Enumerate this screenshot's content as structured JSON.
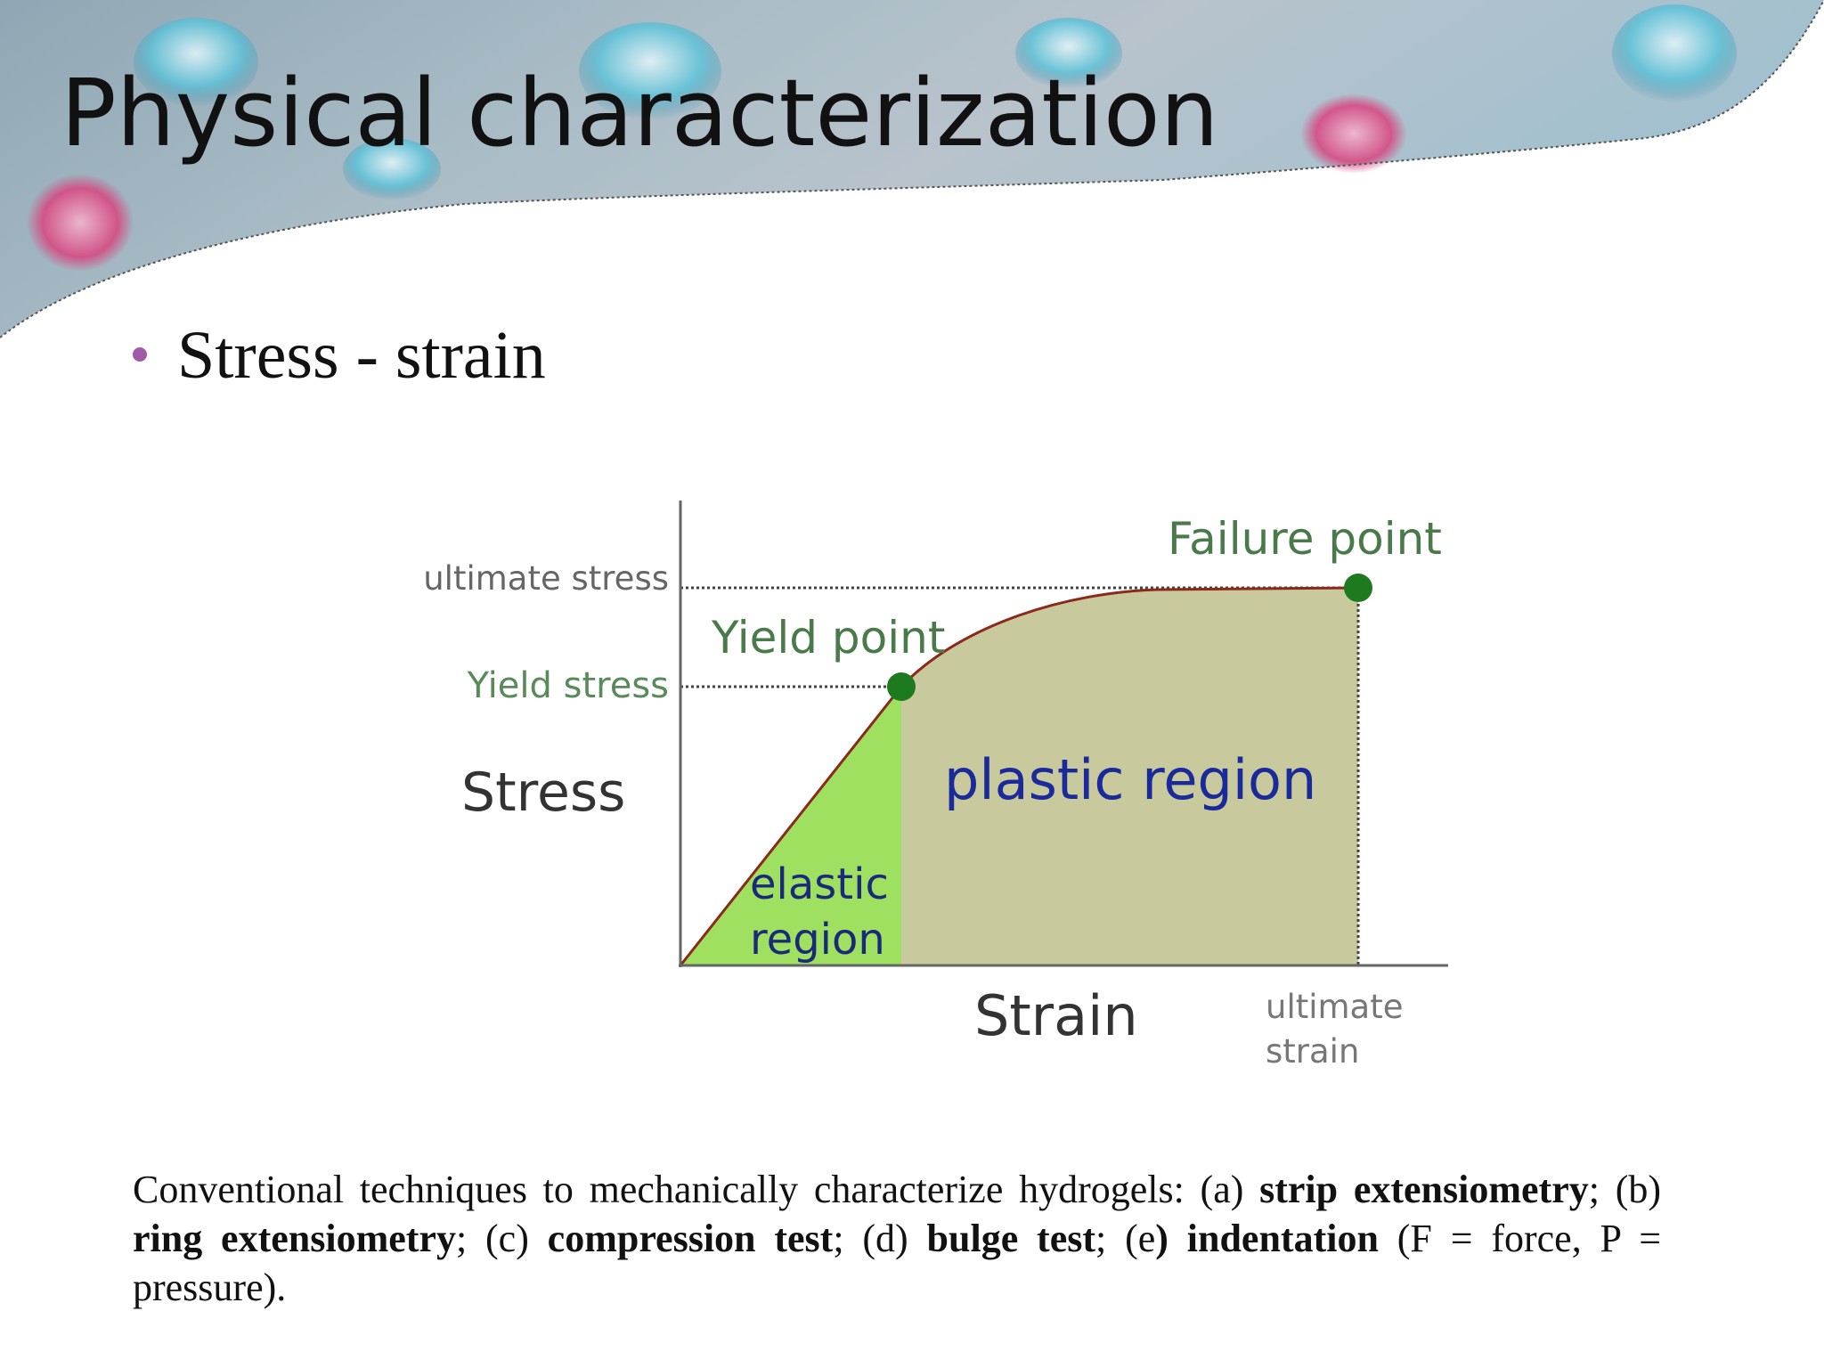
{
  "header": {
    "title": "Physical characterization"
  },
  "bullet": "Stress - strain",
  "diagram": {
    "ultimate_stress": "ultimate stress",
    "yield_stress": "Yield stress",
    "y_axis_label": "Stress",
    "yield_point": "Yield point",
    "failure_point": "Failure point",
    "plastic_region": "plastic region",
    "elastic_region": [
      "elastic",
      "region"
    ],
    "x_axis_label": "Strain",
    "ultimate_strain": [
      "ultimate",
      "strain"
    ]
  },
  "caption": {
    "runs": [
      {
        "text": "Conventional techniques to mechanically characterize hydrogels: (a) ",
        "bold": false
      },
      {
        "text": "strip extensiometry",
        "bold": true
      },
      {
        "text": "; (b) ",
        "bold": false
      },
      {
        "text": "ring extensiometry",
        "bold": true
      },
      {
        "text": "; (c) ",
        "bold": false
      },
      {
        "text": "compression test",
        "bold": true
      },
      {
        "text": "; (d) ",
        "bold": false
      },
      {
        "text": "bulge test",
        "bold": true
      },
      {
        "text": "; (e",
        "bold": false
      },
      {
        "text": ") indentation",
        "bold": true
      },
      {
        "text": " (F = force, P = pressure).",
        "bold": false
      }
    ]
  }
}
